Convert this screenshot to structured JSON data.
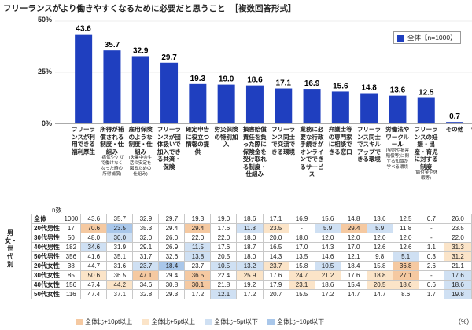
{
  "title": "フリーランスがより働きやすくなるために必要だと思うこと",
  "subtitle": "［複数回答形式］",
  "legend_label": "全体【n=1000】",
  "n_label": "n数",
  "side_label": "男女・世代別",
  "unit": "（%）",
  "colors": {
    "bar": "#1f3fbf",
    "hi10": "#f5c9a1",
    "hi5": "#fbe4c8",
    "lo5": "#cfe0f3",
    "lo10": "#a9c7ea"
  },
  "footer": [
    {
      "label": "全体比+10pt以上",
      "key": "hi10"
    },
    {
      "label": "全体比+5pt以上",
      "key": "hi5"
    },
    {
      "label": "全体比−5pt以下",
      "key": "lo5"
    },
    {
      "label": "全体比−10pt以下",
      "key": "lo10"
    }
  ],
  "categories_display": [
    {
      "label": "フリーランスが利用できる福利厚生",
      "note": ""
    },
    {
      "label": "所得が補償される制度・仕組み",
      "note": "(病気やケガで働けなくなった時の所得補償)"
    },
    {
      "label": "雇用保険のような制度・仕組み",
      "note": "(失業中の生活の安定を図るための仕組み)"
    },
    {
      "label": "フリーランスが団体扱いで加入できる共済・保険",
      "note": ""
    },
    {
      "label": "確定申告に役立つ情報の提供",
      "note": ""
    },
    {
      "label": "労災保険の特別加入",
      "note": ""
    },
    {
      "label": "損害賠償責任を負った際に保険金を受け取れる制度・仕組み",
      "note": ""
    },
    {
      "label": "フリーランス同士で交流できる環境",
      "note": ""
    },
    {
      "label": "業務に必要な行政手続きがオンラインでできるサービス",
      "note": ""
    },
    {
      "label": "弁護士等の専門家に相談できる窓口",
      "note": ""
    },
    {
      "label": "フリーランス同士でスキルアップできる環境",
      "note": ""
    },
    {
      "label": "労働法やワークルール",
      "note": "(契約や損害賠償等)に関する知識が学べる環境"
    },
    {
      "label": "フリーランスの妊娠・出産・育児に対する制度",
      "note": "(給付金や休暇等)"
    },
    {
      "label": "その他",
      "note": ""
    },
    {
      "label": "特になし",
      "note": ""
    }
  ],
  "chart_data": {
    "type": "bar",
    "title": "フリーランスがより働きやすくなるために必要だと思うこと",
    "subtitle": "［複数回答形式］",
    "categories": [
      "フリーランスが利用できる福利厚生",
      "所得が補償される制度・仕組み",
      "雇用保険のような制度・仕組み",
      "フリーランスが団体扱いで加入できる共済・保険",
      "確定申告に役立つ情報の提供",
      "労災保険の特別加入",
      "損害賠償責任を負った際に保険金を受け取れる制度・仕組み",
      "フリーランス同士で交流できる環境",
      "業務に必要な行政手続きがオンラインでできるサービス",
      "弁護士等の専門家に相談できる窓口",
      "フリーランス同士でスキルアップできる環境",
      "労働法やワークルール",
      "フリーランスの妊娠・出産・育児に対する制度",
      "その他",
      "特になし"
    ],
    "series": [
      {
        "name": "全体【n=1000】",
        "values": [
          43.6,
          35.7,
          32.9,
          29.7,
          19.3,
          19.0,
          18.6,
          17.1,
          16.9,
          15.6,
          14.8,
          13.6,
          12.5,
          0.7,
          26.0
        ]
      }
    ],
    "ylim": [
      0,
      50
    ],
    "yticks": [
      "0%",
      "25%",
      "50%"
    ],
    "table": {
      "rows": [
        {
          "label": "全体",
          "n": "1000",
          "values": [
            "43.6",
            "35.7",
            "32.9",
            "29.7",
            "19.3",
            "19.0",
            "18.6",
            "17.1",
            "16.9",
            "15.6",
            "14.8",
            "13.6",
            "12.5",
            "0.7",
            "26.0"
          ],
          "shade": [
            "",
            "",
            "",
            "",
            "",
            "",
            "",
            "",
            "",
            "",
            "",
            "",
            "",
            "",
            ""
          ]
        },
        {
          "label": "20代男性",
          "n": "17",
          "values": [
            "70.6",
            "23.5",
            "35.3",
            "29.4",
            "29.4",
            "17.6",
            "11.8",
            "23.5",
            "-",
            "5.9",
            "29.4",
            "5.9",
            "11.8",
            "-",
            "23.5"
          ],
          "shade": [
            "hi10",
            "lo10",
            "",
            "",
            "hi10",
            "",
            "lo5",
            "hi5",
            "",
            "lo5",
            "hi10",
            "lo5",
            "",
            "",
            ""
          ]
        },
        {
          "label": "30代男性",
          "n": "50",
          "values": [
            "48.0",
            "30.0",
            "32.0",
            "26.0",
            "22.0",
            "22.0",
            "18.0",
            "20.0",
            "18.0",
            "12.0",
            "12.0",
            "12.0",
            "12.0",
            "-",
            "22.0"
          ],
          "shade": [
            "",
            "lo5",
            "",
            "",
            "",
            "",
            "",
            "",
            "",
            "",
            "",
            "",
            "",
            "",
            ""
          ]
        },
        {
          "label": "40代男性",
          "n": "182",
          "values": [
            "34.6",
            "31.9",
            "29.1",
            "26.9",
            "11.5",
            "17.6",
            "18.7",
            "16.5",
            "17.0",
            "14.3",
            "17.0",
            "12.6",
            "12.6",
            "1.1",
            "31.3"
          ],
          "shade": [
            "lo5",
            "",
            "",
            "",
            "lo5",
            "",
            "",
            "",
            "",
            "",
            "",
            "",
            "",
            "",
            "hi5"
          ]
        },
        {
          "label": "50代男性",
          "n": "356",
          "values": [
            "41.6",
            "35.1",
            "31.7",
            "32.6",
            "13.8",
            "20.5",
            "18.0",
            "14.3",
            "13.5",
            "14.6",
            "12.1",
            "9.8",
            "5.1",
            "0.3",
            "31.2"
          ],
          "shade": [
            "",
            "",
            "",
            "",
            "lo5",
            "",
            "",
            "",
            "",
            "",
            "",
            "",
            "lo5",
            "",
            "hi5"
          ]
        },
        {
          "label": "20代女性",
          "n": "38",
          "values": [
            "44.7",
            "31.6",
            "23.7",
            "18.4",
            "23.7",
            "10.5",
            "13.2",
            "23.7",
            "15.8",
            "10.5",
            "18.4",
            "15.8",
            "36.8",
            "2.6",
            "21.1"
          ],
          "shade": [
            "",
            "",
            "lo5",
            "lo10",
            "",
            "lo5",
            "lo5",
            "hi5",
            "",
            "lo5",
            "",
            "",
            "hi10",
            "",
            ""
          ]
        },
        {
          "label": "30代女性",
          "n": "85",
          "values": [
            "50.6",
            "36.5",
            "47.1",
            "29.4",
            "36.5",
            "22.4",
            "25.9",
            "17.6",
            "24.7",
            "21.2",
            "17.6",
            "18.8",
            "27.1",
            "-",
            "17.6"
          ],
          "shade": [
            "hi5",
            "",
            "hi10",
            "",
            "hi10",
            "",
            "hi5",
            "",
            "hi5",
            "hi5",
            "",
            "hi5",
            "hi10",
            "",
            "lo5"
          ]
        },
        {
          "label": "40代女性",
          "n": "156",
          "values": [
            "47.4",
            "44.2",
            "34.6",
            "30.8",
            "30.1",
            "21.8",
            "19.2",
            "17.9",
            "23.1",
            "18.6",
            "15.4",
            "20.5",
            "18.6",
            "0.6",
            "18.6"
          ],
          "shade": [
            "",
            "hi5",
            "",
            "",
            "hi10",
            "",
            "",
            "",
            "hi5",
            "",
            "",
            "hi5",
            "hi5",
            "",
            "lo5"
          ]
        },
        {
          "label": "50代女性",
          "n": "116",
          "values": [
            "47.4",
            "37.1",
            "32.8",
            "29.3",
            "17.2",
            "12.1",
            "17.2",
            "20.7",
            "15.5",
            "17.2",
            "14.7",
            "14.7",
            "8.6",
            "1.7",
            "19.8"
          ],
          "shade": [
            "",
            "",
            "",
            "",
            "",
            "lo5",
            "",
            "",
            "",
            "",
            "",
            "",
            "",
            "",
            "lo5"
          ]
        }
      ]
    }
  }
}
